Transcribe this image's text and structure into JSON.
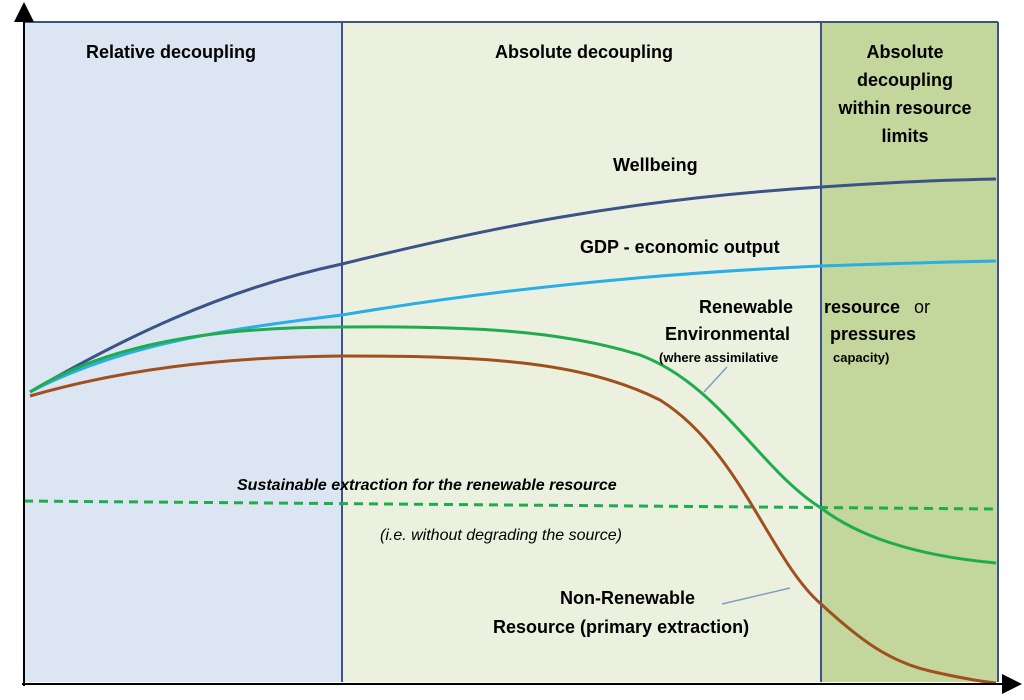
{
  "regions": [
    {
      "key": "relative",
      "lines": [
        "Relative decoupling"
      ],
      "fill": "#dce6f2"
    },
    {
      "key": "absolute",
      "lines": [
        "Absolute decoupling"
      ],
      "fill": "#ebf1de"
    },
    {
      "key": "limits",
      "lines": [
        "Absolute",
        "decoupling",
        "within resource",
        "limits"
      ],
      "fill": "#c3d69b"
    }
  ],
  "curves": {
    "wellbeing": {
      "label": "Wellbeing",
      "color": "#3a5488"
    },
    "gdp": {
      "label": "GDP  - economic output",
      "color": "#2aaee5"
    },
    "renewable": {
      "label_line1_a": "Renewable",
      "label_line1_b": "resource",
      "label_line1_c": "or",
      "label_line2_a": "Environmental",
      "label_line2_b": "pressures",
      "label_line3_a": "(where assimilative",
      "label_line3_b": "capacity)",
      "color": "#1fac4c"
    },
    "nonrenewable": {
      "label_line1": "Non-Renewable",
      "label_line2": "Resource  (primary extraction)",
      "color": "#a0501e"
    }
  },
  "sustainable": {
    "label": "Sustainable extraction for the renewable resource",
    "note": "(i.e. without degrading the source)",
    "color": "#1fac4c"
  },
  "colors": {
    "axis": "#000000",
    "divider": "#3a5488",
    "pointer": "#7f9fc0"
  }
}
